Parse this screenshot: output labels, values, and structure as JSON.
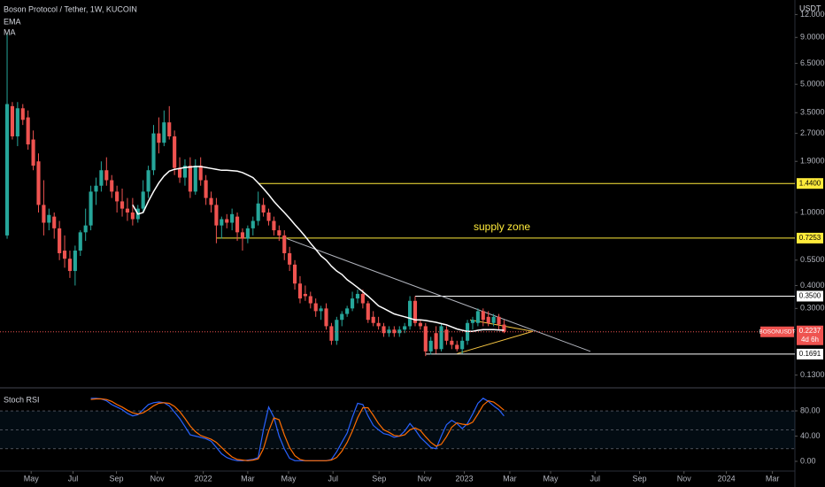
{
  "chart_data": {
    "type": "candlestick",
    "title": "Boson Protocol / Tether, 1W, KUCOIN",
    "currency": "USDT",
    "symbol": "BOSONUSDT",
    "countdown": "4d 6h",
    "annotation": "supply zone",
    "log_scale": true,
    "up_color": "#26a69a",
    "down_color": "#ef5350",
    "xlim": [
      -1.36,
      150.6
    ],
    "xticks": [
      {
        "value": 4.6,
        "label": "May"
      },
      {
        "value": 12.6,
        "label": "Jul"
      },
      {
        "value": 20.9,
        "label": "Sep"
      },
      {
        "value": 28.7,
        "label": "Nov"
      },
      {
        "value": 37.5,
        "label": "2022"
      },
      {
        "value": 46.0,
        "label": "Mar"
      },
      {
        "value": 53.8,
        "label": "May"
      },
      {
        "value": 62.3,
        "label": "Jul"
      },
      {
        "value": 71.1,
        "label": "Sep"
      },
      {
        "value": 79.8,
        "label": "Nov"
      },
      {
        "value": 87.4,
        "label": "2023"
      },
      {
        "value": 96.1,
        "label": "Mar"
      },
      {
        "value": 103.9,
        "label": "May"
      },
      {
        "value": 112.4,
        "label": "Jul"
      },
      {
        "value": 120.9,
        "label": "Sep"
      },
      {
        "value": 129.4,
        "label": "Nov"
      },
      {
        "value": 137.5,
        "label": "2024"
      },
      {
        "value": 146.3,
        "label": "Mar"
      }
    ],
    "ylim": [
      0.112,
      14.4
    ],
    "yticks": [
      {
        "value": 12,
        "label": "12.0000"
      },
      {
        "value": 9,
        "label": "9.0000"
      },
      {
        "value": 6.5,
        "label": "6.5000"
      },
      {
        "value": 5,
        "label": "5.0000"
      },
      {
        "value": 3.5,
        "label": "3.5000"
      },
      {
        "value": 2.7,
        "label": "2.7000"
      },
      {
        "value": 1.9,
        "label": "1.9000"
      },
      {
        "value": 1,
        "label": "1.0000"
      },
      {
        "value": 0.55,
        "label": "0.5500"
      },
      {
        "value": 0.4,
        "label": "0.4000"
      },
      {
        "value": 0.3,
        "label": "0.3000"
      },
      {
        "value": 0.13,
        "label": "0.1300"
      }
    ],
    "candles": [
      [
        0.75,
        9.5,
        0.72,
        3.9
      ],
      [
        3.8,
        4.0,
        2.5,
        2.6
      ],
      [
        2.6,
        4.0,
        2.3,
        3.7
      ],
      [
        3.7,
        3.9,
        3.0,
        3.2
      ],
      [
        3.3,
        3.6,
        2.2,
        2.35
      ],
      [
        2.5,
        2.8,
        1.7,
        1.8
      ],
      [
        1.9,
        2.1,
        1.0,
        1.1
      ],
      [
        1.1,
        1.5,
        0.75,
        0.88
      ],
      [
        0.88,
        1.05,
        0.8,
        0.97
      ],
      [
        0.95,
        1.0,
        0.72,
        0.82
      ],
      [
        0.82,
        0.9,
        0.55,
        0.6
      ],
      [
        0.62,
        0.75,
        0.5,
        0.56
      ],
      [
        0.56,
        0.62,
        0.44,
        0.48
      ],
      [
        0.48,
        0.66,
        0.4,
        0.62
      ],
      [
        0.62,
        0.8,
        0.58,
        0.78
      ],
      [
        0.78,
        1.05,
        0.7,
        0.85
      ],
      [
        0.85,
        1.4,
        0.8,
        1.3
      ],
      [
        1.3,
        1.55,
        1.1,
        1.4
      ],
      [
        1.4,
        1.9,
        1.3,
        1.7
      ],
      [
        1.7,
        2.0,
        1.4,
        1.5
      ],
      [
        1.5,
        1.6,
        1.2,
        1.3
      ],
      [
        1.3,
        1.4,
        1.0,
        1.15
      ],
      [
        1.15,
        1.35,
        0.95,
        1.05
      ],
      [
        1.05,
        1.2,
        0.9,
        1.0
      ],
      [
        1.0,
        1.2,
        0.85,
        0.92
      ],
      [
        0.92,
        1.1,
        0.88,
        1.05
      ],
      [
        1.05,
        1.5,
        1.0,
        1.3
      ],
      [
        1.3,
        1.8,
        1.2,
        1.7
      ],
      [
        1.7,
        3.0,
        1.6,
        2.7
      ],
      [
        2.7,
        3.3,
        2.1,
        2.4
      ],
      [
        2.4,
        3.6,
        2.3,
        3.1
      ],
      [
        3.1,
        3.8,
        2.5,
        2.6
      ],
      [
        2.6,
        2.8,
        1.6,
        1.75
      ],
      [
        1.75,
        2.0,
        1.45,
        1.55
      ],
      [
        1.55,
        1.95,
        1.4,
        1.8
      ],
      [
        1.8,
        2.0,
        1.2,
        1.3
      ],
      [
        1.3,
        1.95,
        1.25,
        1.8
      ],
      [
        1.8,
        2.0,
        1.4,
        1.5
      ],
      [
        1.5,
        1.6,
        1.1,
        1.2
      ],
      [
        1.2,
        1.3,
        1.0,
        1.1
      ],
      [
        1.1,
        1.2,
        0.68,
        0.85
      ],
      [
        0.85,
        0.95,
        0.72,
        0.92
      ],
      [
        0.92,
        0.98,
        0.82,
        0.88
      ],
      [
        0.88,
        1.05,
        0.8,
        0.98
      ],
      [
        0.95,
        1.0,
        0.7,
        0.78
      ],
      [
        0.78,
        0.82,
        0.62,
        0.72
      ],
      [
        0.72,
        0.85,
        0.68,
        0.82
      ],
      [
        0.82,
        0.95,
        0.75,
        0.9
      ],
      [
        0.9,
        1.3,
        0.85,
        1.12
      ],
      [
        1.1,
        1.2,
        0.95,
        1.0
      ],
      [
        1.0,
        1.05,
        0.85,
        0.9
      ],
      [
        0.9,
        0.95,
        0.75,
        0.8
      ],
      [
        0.8,
        0.85,
        0.7,
        0.75
      ],
      [
        0.75,
        0.8,
        0.55,
        0.6
      ],
      [
        0.6,
        0.65,
        0.48,
        0.52
      ],
      [
        0.52,
        0.55,
        0.38,
        0.41
      ],
      [
        0.41,
        0.45,
        0.32,
        0.34
      ],
      [
        0.36,
        0.4,
        0.33,
        0.35
      ],
      [
        0.35,
        0.37,
        0.3,
        0.32
      ],
      [
        0.32,
        0.34,
        0.27,
        0.29
      ],
      [
        0.29,
        0.31,
        0.26,
        0.3
      ],
      [
        0.3,
        0.32,
        0.23,
        0.24
      ],
      [
        0.24,
        0.25,
        0.19,
        0.2
      ],
      [
        0.2,
        0.27,
        0.19,
        0.26
      ],
      [
        0.26,
        0.29,
        0.24,
        0.28
      ],
      [
        0.28,
        0.31,
        0.27,
        0.3
      ],
      [
        0.3,
        0.37,
        0.29,
        0.34
      ],
      [
        0.34,
        0.38,
        0.32,
        0.36
      ],
      [
        0.36,
        0.38,
        0.3,
        0.32
      ],
      [
        0.32,
        0.33,
        0.25,
        0.26
      ],
      [
        0.27,
        0.29,
        0.24,
        0.25
      ],
      [
        0.25,
        0.27,
        0.23,
        0.24
      ],
      [
        0.24,
        0.25,
        0.21,
        0.22
      ],
      [
        0.22,
        0.24,
        0.21,
        0.23
      ],
      [
        0.23,
        0.24,
        0.21,
        0.22
      ],
      [
        0.22,
        0.24,
        0.21,
        0.23
      ],
      [
        0.23,
        0.25,
        0.22,
        0.24
      ],
      [
        0.24,
        0.35,
        0.23,
        0.33
      ],
      [
        0.33,
        0.35,
        0.24,
        0.25
      ],
      [
        0.25,
        0.26,
        0.23,
        0.24
      ],
      [
        0.24,
        0.25,
        0.165,
        0.175
      ],
      [
        0.175,
        0.21,
        0.168,
        0.2
      ],
      [
        0.22,
        0.24,
        0.17,
        0.18
      ],
      [
        0.18,
        0.25,
        0.175,
        0.24
      ],
      [
        0.23,
        0.24,
        0.19,
        0.2
      ],
      [
        0.2,
        0.21,
        0.18,
        0.19
      ],
      [
        0.19,
        0.2,
        0.175,
        0.18
      ],
      [
        0.18,
        0.21,
        0.17,
        0.2
      ],
      [
        0.2,
        0.26,
        0.19,
        0.25
      ],
      [
        0.25,
        0.27,
        0.23,
        0.26
      ],
      [
        0.25,
        0.3,
        0.24,
        0.29
      ],
      [
        0.29,
        0.3,
        0.24,
        0.26
      ],
      [
        0.27,
        0.29,
        0.24,
        0.25
      ],
      [
        0.25,
        0.28,
        0.24,
        0.27
      ],
      [
        0.27,
        0.28,
        0.23,
        0.245
      ],
      [
        0.245,
        0.26,
        0.22,
        0.2237
      ]
    ],
    "overlays": [
      {
        "name": "EMA",
        "color": "#ffffff",
        "values": [
          null,
          null,
          null,
          null,
          null,
          null,
          null,
          null,
          null,
          null,
          null,
          null,
          null,
          null,
          null,
          null,
          null,
          null,
          null,
          null,
          null,
          null,
          null,
          null,
          1.1,
          0.98,
          1.0,
          1.15,
          1.3,
          1.45,
          1.58,
          1.68,
          1.72,
          1.74,
          1.76,
          1.77,
          1.78,
          1.78,
          1.76,
          1.74,
          1.72,
          1.7,
          1.7,
          1.69,
          1.68,
          1.65,
          1.6,
          1.55,
          1.45,
          1.35,
          1.25,
          1.15,
          1.07,
          1.0,
          0.93,
          0.86,
          0.8,
          0.74,
          0.68,
          0.63,
          0.58,
          0.55,
          0.51,
          0.48,
          0.46,
          0.43,
          0.41,
          0.39,
          0.37,
          0.35,
          0.33,
          0.31,
          0.3,
          0.29,
          0.28,
          0.275,
          0.27,
          0.265,
          0.26,
          0.26,
          0.258,
          0.255,
          0.252,
          0.248,
          0.244,
          0.238,
          0.232,
          0.228,
          0.225,
          0.225,
          0.228,
          0.23,
          0.23,
          0.23,
          0.229,
          0.228
        ]
      },
      {
        "name": "MA"
      }
    ],
    "levels": [
      {
        "value": 1.44,
        "label": "1.4400",
        "color": "#ffeb3b",
        "from": 48
      },
      {
        "value": 0.7253,
        "label": "0.7253",
        "color": "#ffeb3b",
        "from": 40
      },
      {
        "value": 0.35,
        "label": "0.3500",
        "color": "#ffffff",
        "from": 78
      },
      {
        "value": 0.1691,
        "label": "0.1691",
        "color": "#ffffff",
        "from": 80
      }
    ],
    "trendlines": [
      {
        "color": "#b2b5be",
        "points": [
          [
            53.5,
            0.72
          ],
          [
            111.5,
            0.175
          ]
        ]
      },
      {
        "color": "#f5c542",
        "points": [
          [
            86,
            0.17
          ],
          [
            100.5,
            0.225
          ]
        ]
      },
      {
        "color": "#f5c542",
        "points": [
          [
            88.5,
            0.26
          ],
          [
            100.5,
            0.225
          ]
        ]
      }
    ],
    "stoch_rsi": {
      "title": "Stoch RSI",
      "ylim": [
        -12.6,
        113.7
      ],
      "yticks": [
        {
          "value": 80,
          "label": "80.00"
        },
        {
          "value": 40,
          "label": "40.00"
        },
        {
          "value": 0,
          "label": "0.00"
        }
      ],
      "bands": [
        80,
        50,
        20
      ],
      "series": [
        {
          "color": "#2962ff",
          "values": [
            null,
            null,
            null,
            null,
            null,
            null,
            null,
            null,
            null,
            null,
            null,
            null,
            null,
            null,
            null,
            null,
            100,
            100,
            99,
            96,
            90,
            86,
            82,
            76,
            72,
            74,
            82,
            90,
            93,
            94,
            93,
            88,
            78,
            68,
            55,
            42,
            40,
            38,
            36,
            32,
            22,
            12,
            6,
            3,
            1,
            1,
            2,
            3,
            6,
            50,
            86,
            70,
            40,
            20,
            5,
            1,
            1,
            1,
            1,
            1,
            1,
            1,
            3,
            15,
            30,
            45,
            70,
            92,
            90,
            72,
            57,
            50,
            44,
            42,
            38,
            40,
            48,
            60,
            50,
            38,
            30,
            22,
            20,
            40,
            58,
            65,
            60,
            52,
            60,
            75,
            92,
            100,
            95,
            88,
            82,
            72
          ]
        },
        {
          "color": "#ff6d00",
          "values": [
            null,
            null,
            null,
            null,
            null,
            null,
            null,
            null,
            null,
            null,
            null,
            null,
            null,
            null,
            null,
            null,
            98,
            99,
            99,
            98,
            95,
            90,
            86,
            81,
            77,
            75,
            77,
            82,
            88,
            92,
            93,
            92,
            87,
            79,
            68,
            56,
            47,
            41,
            38,
            35,
            30,
            22,
            14,
            7,
            3,
            2,
            1,
            2,
            4,
            20,
            48,
            69,
            66,
            42,
            22,
            9,
            3,
            1,
            1,
            1,
            1,
            1,
            2,
            6,
            16,
            30,
            48,
            69,
            85,
            85,
            73,
            60,
            50,
            46,
            41,
            40,
            42,
            50,
            53,
            49,
            39,
            30,
            24,
            27,
            39,
            54,
            61,
            59,
            58,
            62,
            75,
            89,
            96,
            94,
            88,
            81
          ]
        }
      ]
    }
  }
}
